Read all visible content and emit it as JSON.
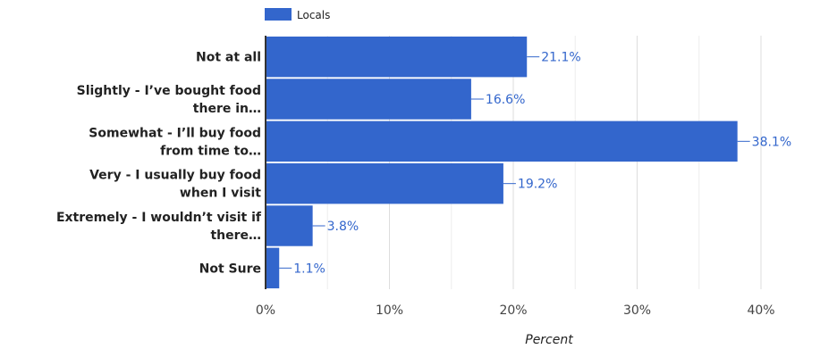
{
  "chart_data": {
    "type": "bar",
    "orientation": "horizontal",
    "categories": [
      [
        "Not at all"
      ],
      [
        "Slightly - I’ve bought food",
        "there in…"
      ],
      [
        "Somewhat - I’ll buy food",
        "from time to…"
      ],
      [
        "Very - I usually buy food",
        "when I visit"
      ],
      [
        "Extremely - I wouldn’t visit if",
        "there…"
      ],
      [
        "Not Sure"
      ]
    ],
    "series": [
      {
        "name": "Locals",
        "values": [
          21.1,
          16.6,
          38.1,
          19.2,
          3.8,
          1.1
        ]
      }
    ],
    "data_labels": [
      "21.1%",
      "16.6%",
      "38.1%",
      "19.2%",
      "3.8%",
      "1.1%"
    ],
    "xlabel": "Percent",
    "xlim": [
      0,
      40
    ],
    "xticks": [
      "0%",
      "10%",
      "20%",
      "30%",
      "40%"
    ],
    "grid": true,
    "legend_position": "top",
    "colors": {
      "bar": "#3366cc",
      "grid": "#dddddd",
      "axis": "#333333",
      "label": "#3366cc"
    }
  }
}
